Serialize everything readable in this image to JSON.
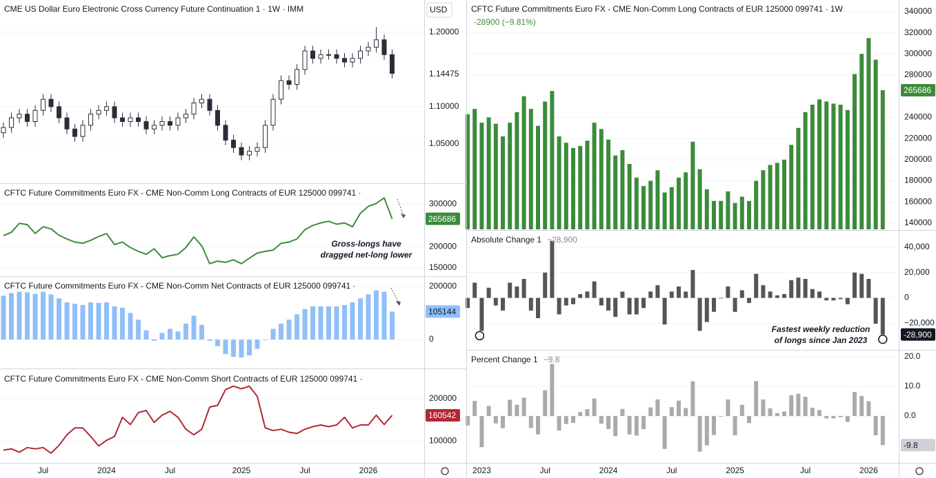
{
  "chart_data": [
    {
      "type": "candlestick",
      "title": "CME US Dollar Euro Electronic Cross Currency Future Continuation 1 · 1W · IMM",
      "currency": "USD",
      "color": "#2a2e39",
      "open": [
        1.065,
        1.072,
        1.085,
        1.09,
        1.08,
        1.095,
        1.11,
        1.1,
        1.085,
        1.07,
        1.06,
        1.075,
        1.09,
        1.095,
        1.1,
        1.085,
        1.08,
        1.085,
        1.08,
        1.07,
        1.075,
        1.08,
        1.075,
        1.085,
        1.09,
        1.105,
        1.11,
        1.095,
        1.075,
        1.055,
        1.045,
        1.035,
        1.04,
        1.045,
        1.075,
        1.11,
        1.135,
        1.13,
        1.15,
        1.175,
        1.165,
        1.17,
        1.17,
        1.165,
        1.16,
        1.165,
        1.175,
        1.18,
        1.19,
        1.17
      ],
      "high": [
        1.079,
        1.092,
        1.097,
        1.097,
        1.102,
        1.117,
        1.117,
        1.107,
        1.092,
        1.077,
        1.082,
        1.097,
        1.102,
        1.107,
        1.107,
        1.092,
        1.092,
        1.092,
        1.087,
        1.082,
        1.087,
        1.087,
        1.092,
        1.097,
        1.112,
        1.117,
        1.117,
        1.102,
        1.082,
        1.062,
        1.052,
        1.047,
        1.052,
        1.082,
        1.117,
        1.142,
        1.142,
        1.157,
        1.182,
        1.182,
        1.177,
        1.177,
        1.177,
        1.172,
        1.172,
        1.182,
        1.187,
        1.207,
        1.197,
        1.177
      ],
      "low": [
        1.058,
        1.065,
        1.078,
        1.073,
        1.073,
        1.088,
        1.093,
        1.078,
        1.063,
        1.053,
        1.053,
        1.068,
        1.083,
        1.088,
        1.078,
        1.073,
        1.073,
        1.073,
        1.063,
        1.063,
        1.068,
        1.068,
        1.068,
        1.078,
        1.083,
        1.098,
        1.088,
        1.068,
        1.048,
        1.038,
        1.028,
        1.028,
        1.033,
        1.038,
        1.068,
        1.103,
        1.123,
        1.123,
        1.143,
        1.158,
        1.158,
        1.163,
        1.158,
        1.153,
        1.153,
        1.158,
        1.168,
        1.173,
        1.163,
        1.138
      ],
      "close": [
        1.072,
        1.085,
        1.09,
        1.08,
        1.095,
        1.11,
        1.1,
        1.085,
        1.07,
        1.06,
        1.075,
        1.09,
        1.095,
        1.1,
        1.085,
        1.08,
        1.085,
        1.08,
        1.07,
        1.075,
        1.08,
        1.075,
        1.085,
        1.09,
        1.105,
        1.11,
        1.095,
        1.075,
        1.055,
        1.045,
        1.035,
        1.04,
        1.045,
        1.075,
        1.11,
        1.135,
        1.13,
        1.15,
        1.175,
        1.165,
        1.17,
        1.17,
        1.165,
        1.16,
        1.165,
        1.175,
        1.18,
        1.19,
        1.17,
        1.14475
      ],
      "ylim": [
        0.998,
        1.2435
      ],
      "yticks": [
        {
          "value": 1.05,
          "label": "1.05000"
        },
        {
          "value": 1.1,
          "label": "1.10000"
        },
        {
          "value": 1.2,
          "label": "1.20000"
        }
      ],
      "grid": true
    },
    {
      "type": "line",
      "title": "CFTC Future Commitments Euro FX - CME Non-Comm Long Contracts of EUR 125000 099741 ·",
      "color": "#3a8c3a",
      "values": [
        226000,
        234000,
        255000,
        252000,
        231000,
        247000,
        242000,
        227000,
        218000,
        211000,
        208000,
        215000,
        224000,
        231000,
        205000,
        211000,
        198000,
        189000,
        182000,
        195000,
        174000,
        179000,
        182000,
        198000,
        223000,
        202000,
        160000,
        166000,
        163000,
        169000,
        160000,
        173000,
        185000,
        189000,
        192000,
        208000,
        211000,
        218000,
        240000,
        250000,
        256000,
        260000,
        253000,
        256000,
        247000,
        279000,
        295000,
        302000,
        315000,
        265686
      ],
      "annotation": [
        "Gross-longs have",
        "dragged net-long lower"
      ],
      "ylim": [
        132000,
        348000
      ],
      "yticks": [
        150000,
        200000,
        300000
      ],
      "grid": true
    },
    {
      "type": "bar",
      "title": "CFTC Future Commitments Euro FX - CME Non-Comm Net Contracts of EUR 125000 099741 ·",
      "color": "#90bff9",
      "values": [
        165000,
        175000,
        180000,
        178000,
        172000,
        180000,
        170000,
        155000,
        140000,
        135000,
        130000,
        140000,
        138000,
        140000,
        125000,
        120000,
        100000,
        75000,
        35000,
        -5000,
        25000,
        40000,
        30000,
        60000,
        90000,
        55000,
        -5000,
        -25000,
        -55000,
        -65000,
        -68000,
        -60000,
        -35000,
        0,
        40000,
        60000,
        75000,
        95000,
        115000,
        125000,
        125000,
        125000,
        125000,
        130000,
        140000,
        155000,
        170000,
        185000,
        180000,
        105144
      ],
      "ylim": [
        -104000,
        236000
      ],
      "yticks": [
        0,
        200000
      ],
      "grid": true
    },
    {
      "type": "line",
      "title": "CFTC Future Commitments Euro FX - CME Non-Comm Short Contracts of EUR 125000 099741 ·",
      "color": "#b22833",
      "categories": [
        null,
        null,
        null,
        null,
        null,
        "Jul",
        null,
        null,
        null,
        null,
        null,
        null,
        null,
        "2024",
        null,
        null,
        null,
        null,
        null,
        null,
        null,
        "Jul",
        null,
        null,
        null,
        null,
        null,
        null,
        null,
        null,
        "2025",
        null,
        null,
        null,
        null,
        null,
        null,
        null,
        "Jul",
        null,
        null,
        null,
        null,
        null,
        null,
        null,
        "2026",
        null,
        null,
        null
      ],
      "values": [
        79000,
        82000,
        74000,
        85000,
        82000,
        85000,
        72000,
        90000,
        115000,
        131000,
        131000,
        111000,
        89000,
        102000,
        111000,
        156000,
        139000,
        167000,
        172000,
        144000,
        161000,
        170000,
        156000,
        128000,
        115000,
        128000,
        180000,
        184000,
        221000,
        229000,
        223000,
        229000,
        205000,
        131000,
        125000,
        128000,
        121000,
        118000,
        128000,
        134000,
        138000,
        134000,
        138000,
        156000,
        131000,
        138000,
        138000,
        161000,
        139000,
        160542
      ],
      "ylim": [
        49200,
        267200
      ],
      "yticks": [
        100000,
        200000
      ],
      "grid": true
    },
    {
      "type": "bar",
      "title": "CFTC Future Commitments Euro FX - CME Non-Comm Long Contracts of EUR 125000 099741 · 1W",
      "change_label": "-28900 (−9.81%)",
      "color": "#3b8b3b",
      "values": [
        243000,
        248000,
        235000,
        240000,
        234000,
        222000,
        235000,
        245000,
        260000,
        248000,
        232000,
        255000,
        265000,
        222000,
        216000,
        211000,
        213000,
        218000,
        235000,
        229000,
        219000,
        204000,
        209000,
        196000,
        183000,
        175000,
        180000,
        190000,
        169000,
        174000,
        183000,
        188000,
        217000,
        191000,
        172000,
        161000,
        161000,
        170000,
        159000,
        165000,
        161000,
        180000,
        190000,
        195000,
        197000,
        200000,
        214000,
        230000,
        245000,
        252000,
        257000,
        255000,
        253000,
        252000,
        247000,
        281000,
        300000,
        315000,
        294586,
        265686
      ],
      "ylim": [
        134100,
        351000
      ],
      "yticks": [
        140000,
        160000,
        180000,
        200000,
        220000,
        240000,
        280000,
        300000,
        320000,
        340000
      ],
      "grid": true
    },
    {
      "type": "bar",
      "title": "Absolute Change 1",
      "legend_value": "−28,900",
      "last_value_label": "-28,900",
      "color": "#555555",
      "values": [
        -8000,
        12000,
        -26000,
        8000,
        -6000,
        -10000,
        12000,
        9000,
        15000,
        -10000,
        -16000,
        20000,
        45000,
        -13000,
        -6000,
        -5000,
        3000,
        5000,
        13000,
        -6000,
        -10000,
        -15000,
        5000,
        -13000,
        -13000,
        -8000,
        5000,
        10000,
        -21000,
        5000,
        9000,
        5000,
        22000,
        -26000,
        -19000,
        -11000,
        0,
        9000,
        -11000,
        6000,
        -4000,
        19000,
        10000,
        5000,
        2000,
        3000,
        14000,
        16000,
        15000,
        7000,
        5000,
        -2000,
        -2000,
        -1000,
        -5000,
        20000,
        19000,
        15000,
        -20414,
        -28900
      ],
      "annotation": [
        "Fastest weekly reduction",
        "of longs since Jan 2023"
      ],
      "ylim": [
        -40500,
        53000
      ],
      "yticks": [
        {
          "value": 40000,
          "label": "40,000"
        },
        {
          "value": 20000,
          "label": "20,000"
        },
        0,
        {
          "value": -20000,
          "label": "−20,000"
        }
      ],
      "grid": true
    },
    {
      "type": "bar",
      "title": "Percent Change 1",
      "legend_value": "−9.8",
      "last_value_label": "-9.8",
      "color": "#aaaaaa",
      "categories": [
        null,
        null,
        "2023",
        null,
        null,
        null,
        null,
        null,
        null,
        null,
        null,
        "Jul",
        null,
        null,
        null,
        null,
        null,
        null,
        null,
        null,
        "2024",
        null,
        null,
        null,
        null,
        null,
        null,
        null,
        null,
        "Jul",
        null,
        null,
        null,
        null,
        null,
        null,
        null,
        null,
        "2025",
        null,
        null,
        null,
        null,
        null,
        null,
        null,
        null,
        null,
        "Jul",
        null,
        null,
        null,
        null,
        null,
        null,
        null,
        null,
        "2026",
        null,
        null
      ],
      "values": [
        -3.2,
        5.1,
        -10.5,
        3.4,
        -2.5,
        -4.1,
        5.5,
        3.8,
        6.2,
        -4.0,
        -6.2,
        8.7,
        17.6,
        -4.9,
        -2.7,
        -2.3,
        1.4,
        2.3,
        5.9,
        -2.6,
        -4.4,
        -6.8,
        2.4,
        -6.2,
        -6.6,
        -4.4,
        2.9,
        5.6,
        -11.1,
        3.0,
        5.2,
        2.7,
        11.7,
        -12.0,
        -9.9,
        -6.4,
        0.0,
        5.6,
        -6.5,
        3.8,
        -2.4,
        11.8,
        5.6,
        2.6,
        1.0,
        1.5,
        7.0,
        7.5,
        6.5,
        2.8,
        2.0,
        -0.8,
        -0.8,
        -0.4,
        -2.0,
        8.1,
        6.8,
        5.0,
        -6.5,
        -9.81
      ],
      "ylim": [
        -15.8,
        22.1
      ],
      "yticks": [
        {
          "value": 20,
          "label": "20.0"
        },
        {
          "value": 10,
          "label": "10.0"
        },
        {
          "value": 0,
          "label": "0.0"
        }
      ],
      "grid": true
    }
  ]
}
